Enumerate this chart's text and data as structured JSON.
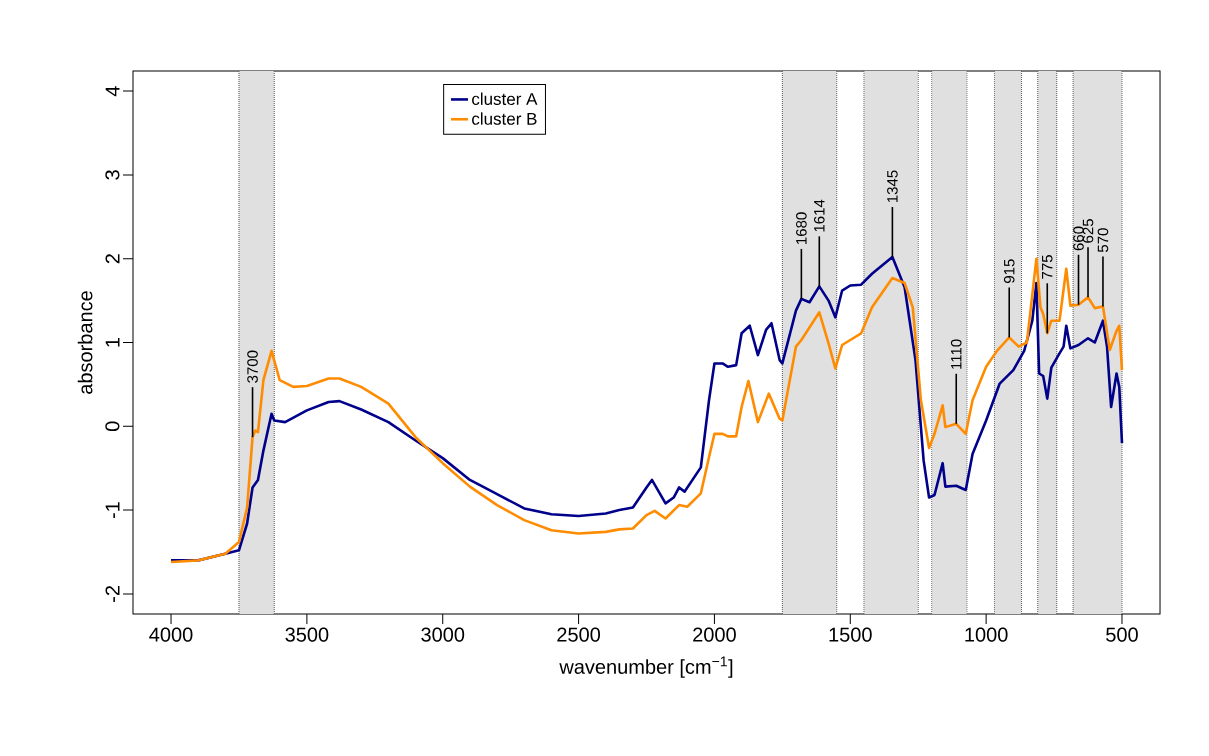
{
  "chart_data": {
    "type": "line",
    "xlabel": "wavenumber [cm$^{−1}$]",
    "ylabel": "absorbance",
    "xlim": [
      4140,
      360
    ],
    "ylim": [
      -2.24,
      4.24
    ],
    "xticks": [
      4000,
      3500,
      3000,
      2500,
      2000,
      1500,
      1000,
      500
    ],
    "yticks": [
      -2,
      -1,
      0,
      1,
      2,
      3,
      4
    ],
    "legend": "top left",
    "line_style": "solid",
    "series": [
      {
        "name": "cluster A",
        "color": "#00008b",
        "x": [
          4000,
          3900,
          3800,
          3750,
          3720,
          3700,
          3680,
          3660,
          3630,
          3620,
          3580,
          3500,
          3420,
          3380,
          3300,
          3200,
          3100,
          3000,
          2900,
          2800,
          2700,
          2600,
          2500,
          2400,
          2350,
          2300,
          2250,
          2230,
          2180,
          2150,
          2130,
          2110,
          2050,
          2020,
          2000,
          1970,
          1950,
          1920,
          1900,
          1870,
          1840,
          1810,
          1790,
          1760,
          1750,
          1700,
          1680,
          1650,
          1614,
          1580,
          1555,
          1530,
          1500,
          1460,
          1420,
          1345,
          1300,
          1260,
          1230,
          1210,
          1190,
          1160,
          1150,
          1110,
          1075,
          1050,
          1000,
          950,
          900,
          860,
          830,
          815,
          805,
          790,
          775,
          760,
          730,
          715,
          705,
          690,
          660,
          625,
          600,
          570,
          555,
          540,
          520,
          510,
          500
        ],
        "values": [
          -1.6,
          -1.6,
          -1.52,
          -1.48,
          -1.16,
          -0.73,
          -0.64,
          -0.29,
          0.15,
          0.07,
          0.05,
          0.19,
          0.29,
          0.3,
          0.2,
          0.05,
          -0.17,
          -0.38,
          -0.64,
          -0.81,
          -0.98,
          -1.05,
          -1.07,
          -1.04,
          -1.0,
          -0.97,
          -0.73,
          -0.64,
          -0.92,
          -0.85,
          -0.73,
          -0.78,
          -0.49,
          0.31,
          0.75,
          0.75,
          0.71,
          0.73,
          1.11,
          1.2,
          0.85,
          1.15,
          1.23,
          0.79,
          0.75,
          1.38,
          1.52,
          1.48,
          1.67,
          1.5,
          1.3,
          1.62,
          1.68,
          1.69,
          1.82,
          2.02,
          1.66,
          0.79,
          -0.41,
          -0.85,
          -0.82,
          -0.44,
          -0.72,
          -0.71,
          -0.76,
          -0.33,
          0.07,
          0.51,
          0.67,
          0.9,
          1.26,
          1.71,
          0.63,
          0.6,
          0.33,
          0.7,
          0.87,
          0.95,
          1.2,
          0.93,
          0.97,
          1.05,
          1.0,
          1.26,
          0.95,
          0.23,
          0.63,
          0.47,
          -0.2
        ]
      },
      {
        "name": "cluster B",
        "color": "#ff8c00",
        "x": [
          4000,
          3900,
          3800,
          3750,
          3720,
          3700,
          3690,
          3680,
          3660,
          3630,
          3600,
          3550,
          3500,
          3420,
          3380,
          3300,
          3200,
          3100,
          3000,
          2900,
          2800,
          2700,
          2600,
          2500,
          2400,
          2350,
          2300,
          2250,
          2220,
          2180,
          2130,
          2100,
          2050,
          2020,
          2000,
          1970,
          1950,
          1920,
          1900,
          1875,
          1840,
          1800,
          1760,
          1750,
          1700,
          1680,
          1614,
          1580,
          1555,
          1530,
          1500,
          1460,
          1420,
          1345,
          1300,
          1270,
          1240,
          1210,
          1190,
          1160,
          1150,
          1110,
          1075,
          1050,
          1000,
          960,
          915,
          880,
          850,
          815,
          800,
          790,
          775,
          760,
          730,
          705,
          690,
          660,
          625,
          600,
          570,
          545,
          520,
          510,
          500
        ],
        "values": [
          -1.62,
          -1.6,
          -1.52,
          -1.38,
          -0.97,
          -0.13,
          -0.05,
          -0.07,
          0.55,
          0.9,
          0.55,
          0.47,
          0.48,
          0.57,
          0.57,
          0.47,
          0.27,
          -0.13,
          -0.44,
          -0.72,
          -0.94,
          -1.12,
          -1.24,
          -1.28,
          -1.26,
          -1.23,
          -1.22,
          -1.06,
          -1.01,
          -1.1,
          -0.94,
          -0.96,
          -0.8,
          -0.37,
          -0.09,
          -0.09,
          -0.12,
          -0.12,
          0.23,
          0.54,
          0.05,
          0.39,
          0.09,
          0.07,
          0.95,
          1.03,
          1.36,
          0.99,
          0.69,
          0.97,
          1.03,
          1.11,
          1.42,
          1.77,
          1.71,
          1.42,
          0.31,
          -0.26,
          -0.09,
          0.25,
          -0.01,
          0.03,
          -0.09,
          0.31,
          0.71,
          0.9,
          1.06,
          0.95,
          1.0,
          2.0,
          1.42,
          1.34,
          1.11,
          1.26,
          1.26,
          1.88,
          1.44,
          1.45,
          1.54,
          1.41,
          1.43,
          0.91,
          1.14,
          1.2,
          0.67
        ]
      }
    ],
    "bands": [
      {
        "axis": "x",
        "from": 3750,
        "to": 3620,
        "color": "#e0e0e0"
      },
      {
        "axis": "x",
        "from": 1750,
        "to": 1550,
        "color": "#e0e0e0"
      },
      {
        "axis": "x",
        "from": 1450,
        "to": 1250,
        "color": "#e0e0e0"
      },
      {
        "axis": "x",
        "from": 1200,
        "to": 1070,
        "color": "#e0e0e0"
      },
      {
        "axis": "x",
        "from": 970,
        "to": 870,
        "color": "#e0e0e0"
      },
      {
        "axis": "x",
        "from": 810,
        "to": 740,
        "color": "#e0e0e0"
      },
      {
        "axis": "x",
        "from": 680,
        "to": 500,
        "color": "#e0e0e0"
      }
    ],
    "annotations": [
      {
        "text": "3700",
        "x": 3700,
        "y": -0.13
      },
      {
        "text": "1680",
        "x": 1680,
        "y": 1.52
      },
      {
        "text": "1614",
        "x": 1614,
        "y": 1.67
      },
      {
        "text": "1345",
        "x": 1345,
        "y": 2.02
      },
      {
        "text": "1110",
        "x": 1110,
        "y": 0.03
      },
      {
        "text": "915",
        "x": 915,
        "y": 1.06
      },
      {
        "text": "775",
        "x": 775,
        "y": 1.11
      },
      {
        "text": "660",
        "x": 660,
        "y": 1.45
      },
      {
        "text": "625",
        "x": 625,
        "y": 1.54
      },
      {
        "text": "570",
        "x": 570,
        "y": 1.43
      }
    ]
  }
}
